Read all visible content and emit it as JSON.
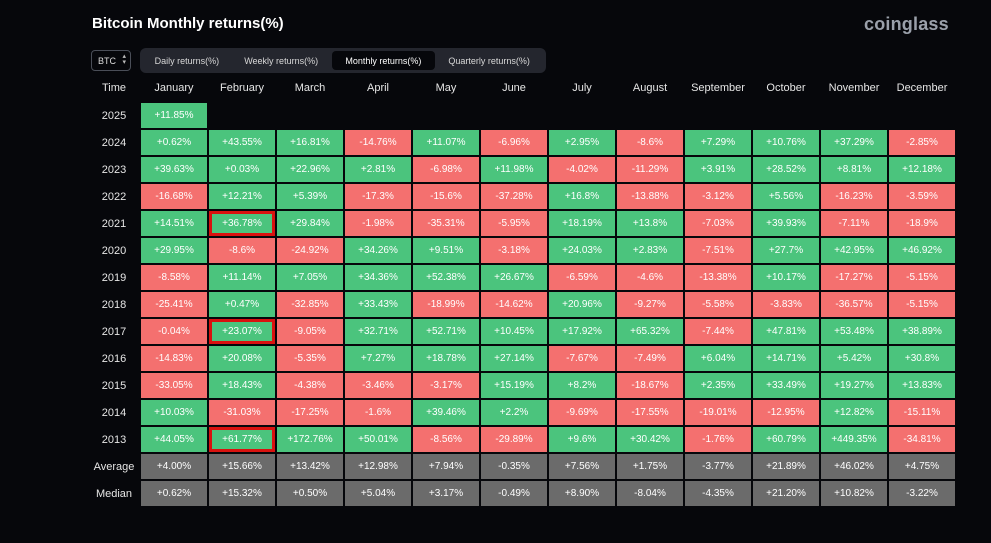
{
  "header": {
    "title": "Bitcoin Monthly returns(%)",
    "logo": "coinglass"
  },
  "asset_select": {
    "value": "BTC"
  },
  "tabs": [
    {
      "label": "Daily returns(%)",
      "active": false
    },
    {
      "label": "Weekly returns(%)",
      "active": false
    },
    {
      "label": "Monthly returns(%)",
      "active": true
    },
    {
      "label": "Quarterly returns(%)",
      "active": false
    }
  ],
  "colors": {
    "positive": "#4bc47d",
    "negative": "#f4706f",
    "stat": "#6b6b6b",
    "highlight": "#d9120f"
  },
  "table": {
    "headers": [
      "Time",
      "January",
      "February",
      "March",
      "April",
      "May",
      "June",
      "July",
      "August",
      "September",
      "October",
      "November",
      "December"
    ],
    "rows": [
      {
        "label": "2025",
        "cells": [
          "+11.85%"
        ]
      },
      {
        "label": "2024",
        "cells": [
          "+0.62%",
          "+43.55%",
          "+16.81%",
          "-14.76%",
          "+11.07%",
          "-6.96%",
          "+2.95%",
          "-8.6%",
          "+7.29%",
          "+10.76%",
          "+37.29%",
          "-2.85%"
        ]
      },
      {
        "label": "2023",
        "cells": [
          "+39.63%",
          "+0.03%",
          "+22.96%",
          "+2.81%",
          "-6.98%",
          "+11.98%",
          "-4.02%",
          "-11.29%",
          "+3.91%",
          "+28.52%",
          "+8.81%",
          "+12.18%"
        ]
      },
      {
        "label": "2022",
        "cells": [
          "-16.68%",
          "+12.21%",
          "+5.39%",
          "-17.3%",
          "-15.6%",
          "-37.28%",
          "+16.8%",
          "-13.88%",
          "-3.12%",
          "+5.56%",
          "-16.23%",
          "-3.59%"
        ]
      },
      {
        "label": "2021",
        "cells": [
          "+14.51%",
          "+36.78%",
          "+29.84%",
          "-1.98%",
          "-35.31%",
          "-5.95%",
          "+18.19%",
          "+13.8%",
          "-7.03%",
          "+39.93%",
          "-7.11%",
          "-18.9%"
        ],
        "highlight": [
          1
        ]
      },
      {
        "label": "2020",
        "cells": [
          "+29.95%",
          "-8.6%",
          "-24.92%",
          "+34.26%",
          "+9.51%",
          "-3.18%",
          "+24.03%",
          "+2.83%",
          "-7.51%",
          "+27.7%",
          "+42.95%",
          "+46.92%"
        ]
      },
      {
        "label": "2019",
        "cells": [
          "-8.58%",
          "+11.14%",
          "+7.05%",
          "+34.36%",
          "+52.38%",
          "+26.67%",
          "-6.59%",
          "-4.6%",
          "-13.38%",
          "+10.17%",
          "-17.27%",
          "-5.15%"
        ]
      },
      {
        "label": "2018",
        "cells": [
          "-25.41%",
          "+0.47%",
          "-32.85%",
          "+33.43%",
          "-18.99%",
          "-14.62%",
          "+20.96%",
          "-9.27%",
          "-5.58%",
          "-3.83%",
          "-36.57%",
          "-5.15%"
        ]
      },
      {
        "label": "2017",
        "cells": [
          "-0.04%",
          "+23.07%",
          "-9.05%",
          "+32.71%",
          "+52.71%",
          "+10.45%",
          "+17.92%",
          "+65.32%",
          "-7.44%",
          "+47.81%",
          "+53.48%",
          "+38.89%"
        ],
        "highlight": [
          1
        ]
      },
      {
        "label": "2016",
        "cells": [
          "-14.83%",
          "+20.08%",
          "-5.35%",
          "+7.27%",
          "+18.78%",
          "+27.14%",
          "-7.67%",
          "-7.49%",
          "+6.04%",
          "+14.71%",
          "+5.42%",
          "+30.8%"
        ]
      },
      {
        "label": "2015",
        "cells": [
          "-33.05%",
          "+18.43%",
          "-4.38%",
          "-3.46%",
          "-3.17%",
          "+15.19%",
          "+8.2%",
          "-18.67%",
          "+2.35%",
          "+33.49%",
          "+19.27%",
          "+13.83%"
        ]
      },
      {
        "label": "2014",
        "cells": [
          "+10.03%",
          "-31.03%",
          "-17.25%",
          "-1.6%",
          "+39.46%",
          "+2.2%",
          "-9.69%",
          "-17.55%",
          "-19.01%",
          "-12.95%",
          "+12.82%",
          "-15.11%"
        ]
      },
      {
        "label": "2013",
        "cells": [
          "+44.05%",
          "+61.77%",
          "+172.76%",
          "+50.01%",
          "-8.56%",
          "-29.89%",
          "+9.6%",
          "+30.42%",
          "-1.76%",
          "+60.79%",
          "+449.35%",
          "-34.81%"
        ],
        "highlight": [
          1
        ]
      }
    ],
    "stats": [
      {
        "label": "Average",
        "cells": [
          "+4.00%",
          "+15.66%",
          "+13.42%",
          "+12.98%",
          "+7.94%",
          "-0.35%",
          "+7.56%",
          "+1.75%",
          "-3.77%",
          "+21.89%",
          "+46.02%",
          "+4.75%"
        ]
      },
      {
        "label": "Median",
        "cells": [
          "+0.62%",
          "+15.32%",
          "+0.50%",
          "+5.04%",
          "+3.17%",
          "-0.49%",
          "+8.90%",
          "-8.04%",
          "-4.35%",
          "+21.20%",
          "+10.82%",
          "-3.22%"
        ]
      }
    ]
  }
}
